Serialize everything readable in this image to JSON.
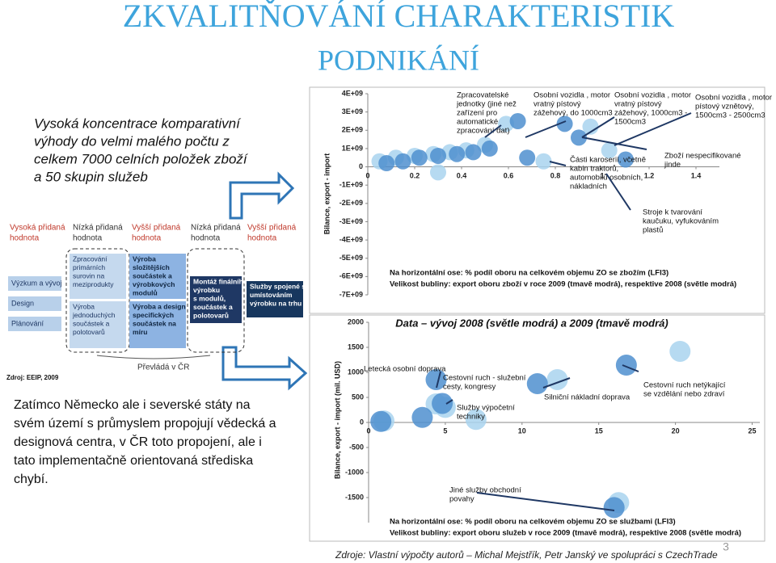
{
  "title": {
    "line1": "ZKVALITŇOVÁNÍ CHARAKTERISTIK",
    "line2": "PODNIKÁNÍ"
  },
  "left_top_text": [
    "Vysoká koncentrace komparativní",
    "výhody do velmi malého počtu z",
    "celkem 7000 celních položek zboží",
    "a 50 skupin služeb"
  ],
  "left_bottom_text": [
    "Zatímco Německo ale i severské státy na",
    "svém území s průmyslem propojují vědecká a",
    "designová centra, v ČR toto propojení, ale i",
    "tato implementačně orientovaná střediska",
    "chybí."
  ],
  "diagram": {
    "headers": [
      [
        "Vysoká přidaná",
        "hodnota"
      ],
      [
        "Nízká přidaná",
        "hodnota"
      ],
      [
        "Vyšší přidaná",
        "hodnota"
      ],
      [
        "Nízká přidaná",
        "hodnota"
      ],
      [
        "Vyšší přidaná",
        "hodnota"
      ]
    ],
    "header_colors": [
      "#c0392b",
      "#333333",
      "#c0392b",
      "#333333",
      "#c0392b"
    ],
    "stages": [
      "Výzkum a vývoj",
      "Design",
      "Plánování"
    ],
    "boxes": [
      [
        "Zpracování",
        "primárních",
        "surovin na",
        "meziprodukty"
      ],
      [
        "Výroba",
        "jednoduchých",
        "součástek a",
        "polotovarů"
      ],
      [
        "Výroba",
        "složitějších",
        "součástek a",
        "výrobkových",
        "modulů"
      ],
      [
        "Výroba a design",
        "specifických",
        "součástek na",
        "míru"
      ],
      [
        "Montáž finálního",
        "výrobku",
        "s modulů,",
        "součástek a",
        "polotovarů"
      ],
      [
        "Služby spojené s",
        "umístováním",
        "výrobku na trhu"
      ]
    ],
    "bottom": "Převládá v ČR",
    "source": "Zdroj: EEIP, 2009"
  },
  "charts": [
    {
      "type": "scatter",
      "y_label": "Bilance, export - import",
      "xlim": [
        0,
        1.5
      ],
      "ylim": [
        -7000000000,
        4000000000
      ],
      "xticks": [
        0,
        0.2,
        0.4,
        0.6,
        0.8,
        1,
        1.2,
        1.4
      ],
      "yticks": [
        {
          "value": 4000000000,
          "label": "4E+09"
        },
        {
          "value": 3000000000,
          "label": "3E+09"
        },
        {
          "value": 2000000000,
          "label": "2E+09"
        },
        {
          "value": 1000000000,
          "label": "1E+09"
        },
        0,
        {
          "value": -1000000000,
          "label": "-1E+09"
        },
        {
          "value": -2000000000,
          "label": "-2E+09"
        },
        {
          "value": -3000000000,
          "label": "-3E+09"
        },
        {
          "value": -4000000000,
          "label": "-4E+09"
        },
        {
          "value": -5000000000,
          "label": "-5E+09"
        },
        {
          "value": -6000000000,
          "label": "-6E+09"
        },
        {
          "value": -7000000000,
          "label": "-7E+09"
        }
      ],
      "series": [
        {
          "color": "#a9d3ee",
          "x": [
            0.05,
            0.12,
            0.2,
            0.28,
            0.35,
            0.42,
            0.5,
            0.59,
            0.95,
            1.03,
            0.75,
            0.3
          ],
          "y": [
            300000000,
            500000000,
            600000000,
            700000000,
            800000000,
            900000000,
            1200000000,
            2350000000,
            2200000000,
            900000000,
            300000000,
            -300000000
          ]
        },
        {
          "color": "#4f8fcf",
          "x": [
            0.08,
            0.15,
            0.22,
            0.3,
            0.38,
            0.45,
            0.52,
            0.64,
            0.84,
            0.9,
            0.68,
            1.1
          ],
          "y": [
            200000000,
            300000000,
            500000000,
            600000000,
            700000000,
            800000000,
            1000000000,
            2500000000,
            2350000000,
            1600000000,
            500000000,
            400000000
          ]
        }
      ],
      "annotations": [
        [
          "Zpracovatelské",
          "jednotky (jiné než",
          "zařízení pro",
          "automatické",
          "zpracování dat)"
        ],
        [
          "Osobní vozidla , motor",
          "vratný pístový",
          "zážehový, do 1000cm3"
        ],
        [
          "Osobní vozidla , motor",
          "vratný pístový",
          "zážehový, 1000cm3 -",
          "1500cm3"
        ],
        [
          "Osobní vozidla , motor",
          "pístový vznětový,",
          "1500cm3 - 2500cm3"
        ],
        [
          "Části karoserií, včetně",
          "kabin traktorů,",
          "automobilů osobních,",
          "nákladních"
        ],
        [
          "Zboží nespecifikované",
          "jinde"
        ],
        [
          "Stroje k tvarování",
          "kaučuku, vyfukováním",
          "plastů"
        ]
      ],
      "notes": [
        "Na horizontální ose: % podíl oboru na celkovém objemu ZO se zbožím (LFI3)",
        "Velikost bubliny: export oboru zboží v roce 2009 (tmavě modrá), respektive 2008 (světle modrá)"
      ]
    },
    {
      "type": "scatter",
      "caption": "Data – vývoj 2008 (světle modrá) a 2009 (tmavě modrá)",
      "y_label": "Bilance, export - import (mil. USD)",
      "xlim": [
        0,
        25.5
      ],
      "ylim": [
        -2000,
        2000
      ],
      "xticks": [
        0,
        5,
        10,
        15,
        20,
        25
      ],
      "yticks": [
        2000,
        1500,
        1000,
        500,
        0,
        -500,
        -1000,
        -1500
      ],
      "series": [
        {
          "color": "#a9d3ee",
          "x": [
            20.3,
            12.3,
            4.4,
            5,
            7,
            1,
            16.3
          ],
          "y": [
            1420,
            855,
            370,
            300,
            60,
            30,
            -1600
          ]
        },
        {
          "color": "#4f8fcf",
          "x": [
            16.8,
            11,
            4.4,
            4.8,
            3.5,
            0.8,
            16
          ],
          "y": [
            1145,
            775,
            855,
            380,
            100,
            20,
            -1700
          ]
        }
      ],
      "annotations": [
        [
          "Letecká osobní doprava"
        ],
        [
          "Cestovní ruch - služební",
          "cesty, kongresy"
        ],
        [
          "Služby výpočetní",
          "techniky"
        ],
        [
          "Silniční nákladní doprava"
        ],
        [
          "Cestovní ruch netýkající",
          "se vzdělání nebo zdraví"
        ],
        [
          "Jiné služby obchodní",
          "povahy"
        ]
      ],
      "notes": [
        "Na horizontální ose: % podíl oboru na celkovém objemu ZO se službami (LFI3)",
        "Velikost bubliny: export oboru služeb v roce 2009 (tmavě modrá), respektive 2008 (světle modrá)"
      ]
    }
  ],
  "footer": "Zdroje: Vlastní výpočty autorů – Michal Mejstřík, Petr Janský ve spolupráci s CzechTrade",
  "page_number": "3"
}
